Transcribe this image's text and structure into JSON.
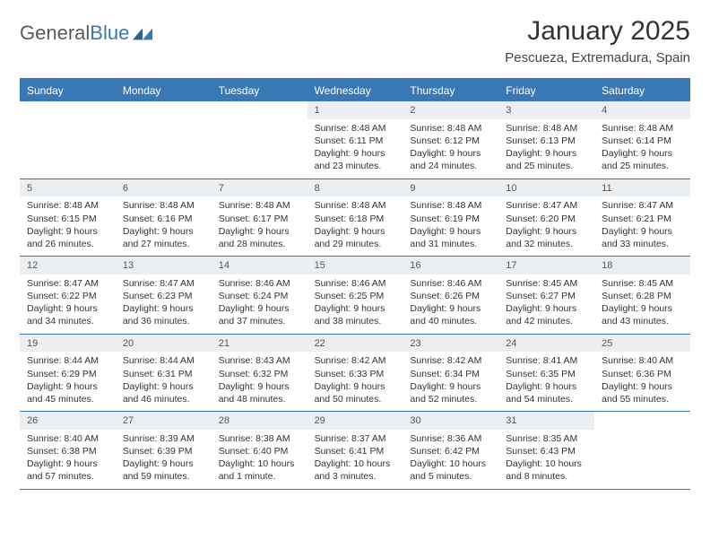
{
  "logo": {
    "text1": "General",
    "text2": "Blue"
  },
  "title": "January 2025",
  "location": "Pescueza, Extremadura, Spain",
  "colors": {
    "header_bg": "#3a78b5",
    "header_text": "#ffffff",
    "date_bg": "#eceff1",
    "border": "#3a78b5",
    "text": "#333333"
  },
  "day_names": [
    "Sunday",
    "Monday",
    "Tuesday",
    "Wednesday",
    "Thursday",
    "Friday",
    "Saturday"
  ],
  "weeks": [
    [
      null,
      null,
      null,
      {
        "d": "1",
        "sr": "Sunrise: 8:48 AM",
        "ss": "Sunset: 6:11 PM",
        "dl1": "Daylight: 9 hours",
        "dl2": "and 23 minutes."
      },
      {
        "d": "2",
        "sr": "Sunrise: 8:48 AM",
        "ss": "Sunset: 6:12 PM",
        "dl1": "Daylight: 9 hours",
        "dl2": "and 24 minutes."
      },
      {
        "d": "3",
        "sr": "Sunrise: 8:48 AM",
        "ss": "Sunset: 6:13 PM",
        "dl1": "Daylight: 9 hours",
        "dl2": "and 25 minutes."
      },
      {
        "d": "4",
        "sr": "Sunrise: 8:48 AM",
        "ss": "Sunset: 6:14 PM",
        "dl1": "Daylight: 9 hours",
        "dl2": "and 25 minutes."
      }
    ],
    [
      {
        "d": "5",
        "sr": "Sunrise: 8:48 AM",
        "ss": "Sunset: 6:15 PM",
        "dl1": "Daylight: 9 hours",
        "dl2": "and 26 minutes."
      },
      {
        "d": "6",
        "sr": "Sunrise: 8:48 AM",
        "ss": "Sunset: 6:16 PM",
        "dl1": "Daylight: 9 hours",
        "dl2": "and 27 minutes."
      },
      {
        "d": "7",
        "sr": "Sunrise: 8:48 AM",
        "ss": "Sunset: 6:17 PM",
        "dl1": "Daylight: 9 hours",
        "dl2": "and 28 minutes."
      },
      {
        "d": "8",
        "sr": "Sunrise: 8:48 AM",
        "ss": "Sunset: 6:18 PM",
        "dl1": "Daylight: 9 hours",
        "dl2": "and 29 minutes."
      },
      {
        "d": "9",
        "sr": "Sunrise: 8:48 AM",
        "ss": "Sunset: 6:19 PM",
        "dl1": "Daylight: 9 hours",
        "dl2": "and 31 minutes."
      },
      {
        "d": "10",
        "sr": "Sunrise: 8:47 AM",
        "ss": "Sunset: 6:20 PM",
        "dl1": "Daylight: 9 hours",
        "dl2": "and 32 minutes."
      },
      {
        "d": "11",
        "sr": "Sunrise: 8:47 AM",
        "ss": "Sunset: 6:21 PM",
        "dl1": "Daylight: 9 hours",
        "dl2": "and 33 minutes."
      }
    ],
    [
      {
        "d": "12",
        "sr": "Sunrise: 8:47 AM",
        "ss": "Sunset: 6:22 PM",
        "dl1": "Daylight: 9 hours",
        "dl2": "and 34 minutes."
      },
      {
        "d": "13",
        "sr": "Sunrise: 8:47 AM",
        "ss": "Sunset: 6:23 PM",
        "dl1": "Daylight: 9 hours",
        "dl2": "and 36 minutes."
      },
      {
        "d": "14",
        "sr": "Sunrise: 8:46 AM",
        "ss": "Sunset: 6:24 PM",
        "dl1": "Daylight: 9 hours",
        "dl2": "and 37 minutes."
      },
      {
        "d": "15",
        "sr": "Sunrise: 8:46 AM",
        "ss": "Sunset: 6:25 PM",
        "dl1": "Daylight: 9 hours",
        "dl2": "and 38 minutes."
      },
      {
        "d": "16",
        "sr": "Sunrise: 8:46 AM",
        "ss": "Sunset: 6:26 PM",
        "dl1": "Daylight: 9 hours",
        "dl2": "and 40 minutes."
      },
      {
        "d": "17",
        "sr": "Sunrise: 8:45 AM",
        "ss": "Sunset: 6:27 PM",
        "dl1": "Daylight: 9 hours",
        "dl2": "and 42 minutes."
      },
      {
        "d": "18",
        "sr": "Sunrise: 8:45 AM",
        "ss": "Sunset: 6:28 PM",
        "dl1": "Daylight: 9 hours",
        "dl2": "and 43 minutes."
      }
    ],
    [
      {
        "d": "19",
        "sr": "Sunrise: 8:44 AM",
        "ss": "Sunset: 6:29 PM",
        "dl1": "Daylight: 9 hours",
        "dl2": "and 45 minutes."
      },
      {
        "d": "20",
        "sr": "Sunrise: 8:44 AM",
        "ss": "Sunset: 6:31 PM",
        "dl1": "Daylight: 9 hours",
        "dl2": "and 46 minutes."
      },
      {
        "d": "21",
        "sr": "Sunrise: 8:43 AM",
        "ss": "Sunset: 6:32 PM",
        "dl1": "Daylight: 9 hours",
        "dl2": "and 48 minutes."
      },
      {
        "d": "22",
        "sr": "Sunrise: 8:42 AM",
        "ss": "Sunset: 6:33 PM",
        "dl1": "Daylight: 9 hours",
        "dl2": "and 50 minutes."
      },
      {
        "d": "23",
        "sr": "Sunrise: 8:42 AM",
        "ss": "Sunset: 6:34 PM",
        "dl1": "Daylight: 9 hours",
        "dl2": "and 52 minutes."
      },
      {
        "d": "24",
        "sr": "Sunrise: 8:41 AM",
        "ss": "Sunset: 6:35 PM",
        "dl1": "Daylight: 9 hours",
        "dl2": "and 54 minutes."
      },
      {
        "d": "25",
        "sr": "Sunrise: 8:40 AM",
        "ss": "Sunset: 6:36 PM",
        "dl1": "Daylight: 9 hours",
        "dl2": "and 55 minutes."
      }
    ],
    [
      {
        "d": "26",
        "sr": "Sunrise: 8:40 AM",
        "ss": "Sunset: 6:38 PM",
        "dl1": "Daylight: 9 hours",
        "dl2": "and 57 minutes."
      },
      {
        "d": "27",
        "sr": "Sunrise: 8:39 AM",
        "ss": "Sunset: 6:39 PM",
        "dl1": "Daylight: 9 hours",
        "dl2": "and 59 minutes."
      },
      {
        "d": "28",
        "sr": "Sunrise: 8:38 AM",
        "ss": "Sunset: 6:40 PM",
        "dl1": "Daylight: 10 hours",
        "dl2": "and 1 minute."
      },
      {
        "d": "29",
        "sr": "Sunrise: 8:37 AM",
        "ss": "Sunset: 6:41 PM",
        "dl1": "Daylight: 10 hours",
        "dl2": "and 3 minutes."
      },
      {
        "d": "30",
        "sr": "Sunrise: 8:36 AM",
        "ss": "Sunset: 6:42 PM",
        "dl1": "Daylight: 10 hours",
        "dl2": "and 5 minutes."
      },
      {
        "d": "31",
        "sr": "Sunrise: 8:35 AM",
        "ss": "Sunset: 6:43 PM",
        "dl1": "Daylight: 10 hours",
        "dl2": "and 8 minutes."
      },
      null
    ]
  ]
}
